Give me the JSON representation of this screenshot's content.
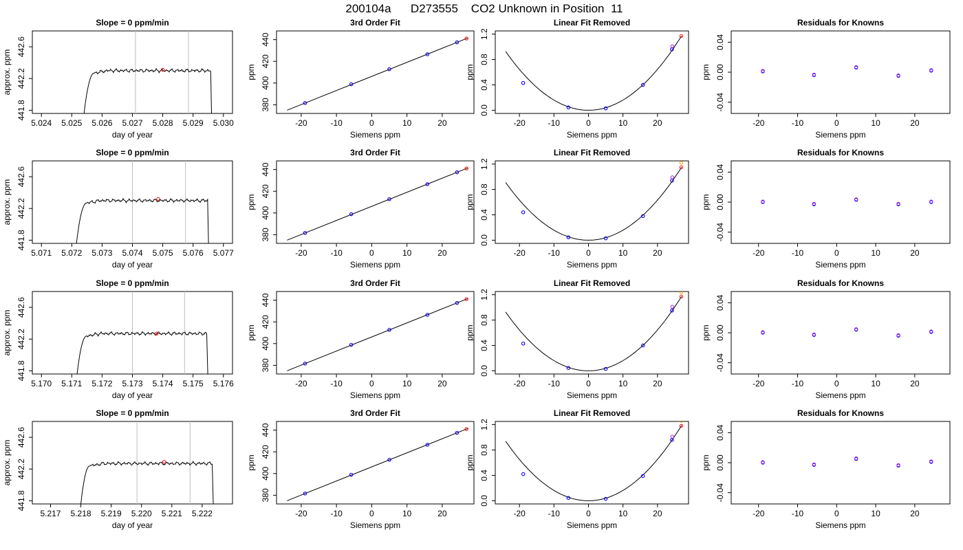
{
  "figure_title": "200104a      D273555    CO2 Unknown in Position  11",
  "colors": {
    "trace": "#000000",
    "gridline": "#bebebe",
    "unknown": "#ff0000",
    "known_blue": "#0000ff",
    "known_purple": "#a020f0",
    "extrapolated": "#ffa500"
  },
  "labels": {
    "slope_title": "Slope =  0  ppm/min",
    "fit_title": "3rd Order Fit",
    "lin_title": "Linear Fit Removed",
    "res_title": "Residuals for Knowns",
    "day_xlabel": "day of year",
    "day_ylabel": "approx. ppm",
    "siemens_xlabel": "Siemens ppm",
    "ppm_ylabel": "ppm"
  },
  "chart_data": [
    {
      "row": 1,
      "panels": [
        {
          "type": "line",
          "title": "Slope =  0  ppm/min",
          "xlabel": "day of year",
          "ylabel": "approx. ppm",
          "xlim": [
            5.0237,
            5.0303
          ],
          "ylim": [
            441.76,
            442.8
          ],
          "xticks": [
            "5.024",
            "5.025",
            "5.026",
            "5.027",
            "5.028",
            "5.029",
            "5.030"
          ],
          "yticks": [
            "441.8",
            "442.2",
            "442.6"
          ],
          "trace": {
            "t_rise_start": 5.02535,
            "t_rise_end": 5.02575,
            "t_fall_start": 5.02958,
            "t_fall_end": 5.02962,
            "plateau": 442.3
          },
          "vlines": [
            5.0271,
            5.02885
          ],
          "unknown_point": {
            "x": 5.028,
            "y": 442.31
          }
        },
        {
          "type": "scatter",
          "title": "3rd Order Fit",
          "xlabel": "Siemens ppm",
          "ylabel": "ppm",
          "xlim": [
            -27,
            29
          ],
          "ylim": [
            372,
            448
          ],
          "xticks": [
            "-20",
            "-10",
            "0",
            "10",
            "20"
          ],
          "yticks": [
            "380",
            "400",
            "420",
            "440"
          ],
          "knowns": [
            {
              "x": -18.9,
              "y": 381.6
            },
            {
              "x": -5.8,
              "y": 398.9
            },
            {
              "x": 5.0,
              "y": 412.7
            },
            {
              "x": 15.8,
              "y": 426.5
            },
            {
              "x": 24.2,
              "y": 437.5
            }
          ],
          "unknown": {
            "x": 26.9,
            "y": 441.0
          }
        },
        {
          "type": "scatter",
          "title": "Linear Fit Removed",
          "xlabel": "Siemens ppm",
          "ylabel": "ppm",
          "xlim": [
            -27,
            29
          ],
          "ylim": [
            -0.05,
            1.25
          ],
          "xticks": [
            "-20",
            "-10",
            "0",
            "10",
            "20"
          ],
          "yticks": [
            "0.0",
            "0.4",
            "0.8",
            "1.2"
          ],
          "curve": {
            "a": 0.00161,
            "range": [
              -24,
              27
            ]
          },
          "knowns": [
            {
              "x": -18.9,
              "y": 0.43
            },
            {
              "x": -5.8,
              "y": 0.045
            },
            {
              "x": 5.0,
              "y": 0.03
            },
            {
              "x": 15.8,
              "y": 0.4
            },
            {
              "x": 24.2,
              "y": 0.96
            }
          ],
          "extra_purple": [
            {
              "x": 24.3,
              "y": 1.01
            }
          ],
          "unknown": {
            "x": 26.9,
            "y": 1.17
          },
          "extrapolated": {
            "x": 26.9,
            "y": 1.28
          }
        },
        {
          "type": "scatter",
          "title": "Residuals for Knowns",
          "xlabel": "Siemens ppm",
          "ylabel": "ppm",
          "xlim": [
            -27,
            29
          ],
          "ylim": [
            -0.055,
            0.055
          ],
          "xticks": [
            "-20",
            "-10",
            "0",
            "10",
            "20"
          ],
          "yticks": [
            "-0.04",
            "0.00",
            "0.04"
          ],
          "knowns": [
            {
              "x": -18.9,
              "y": 0.001
            },
            {
              "x": -5.8,
              "y": -0.004
            },
            {
              "x": 5.0,
              "y": 0.006
            },
            {
              "x": 15.8,
              "y": -0.005
            },
            {
              "x": 24.2,
              "y": 0.002
            }
          ]
        }
      ]
    },
    {
      "row": 2,
      "panels": [
        {
          "type": "line",
          "title": "Slope =  0  ppm/min",
          "xlabel": "day of year",
          "ylabel": "approx. ppm",
          "xlim": [
            5.0707,
            5.0773
          ],
          "ylim": [
            441.76,
            442.8
          ],
          "xticks": [
            "5.071",
            "5.072",
            "5.073",
            "5.074",
            "5.075",
            "5.076",
            "5.077"
          ],
          "yticks": [
            "441.8",
            "442.2",
            "442.6"
          ],
          "trace": {
            "t_rise_start": 5.0721,
            "t_rise_end": 5.0725,
            "t_fall_start": 5.07648,
            "t_fall_end": 5.07652,
            "plateau": 442.3
          },
          "vlines": [
            5.074,
            5.07575
          ],
          "unknown_point": {
            "x": 5.07485,
            "y": 442.32
          }
        },
        {
          "type": "scatter",
          "title": "3rd Order Fit",
          "xlabel": "Siemens ppm",
          "ylabel": "ppm",
          "xlim": [
            -27,
            29
          ],
          "ylim": [
            372,
            448
          ],
          "xticks": [
            "-20",
            "-10",
            "0",
            "10",
            "20"
          ],
          "yticks": [
            "380",
            "400",
            "420",
            "440"
          ],
          "knowns": [
            {
              "x": -18.9,
              "y": 381.6
            },
            {
              "x": -5.8,
              "y": 398.9
            },
            {
              "x": 5.0,
              "y": 412.7
            },
            {
              "x": 15.8,
              "y": 426.5
            },
            {
              "x": 24.2,
              "y": 437.5
            }
          ],
          "unknown": {
            "x": 26.9,
            "y": 441.0
          }
        },
        {
          "type": "scatter",
          "title": "Linear Fit Removed",
          "xlabel": "Siemens ppm",
          "ylabel": "ppm",
          "xlim": [
            -27,
            29
          ],
          "ylim": [
            -0.05,
            1.25
          ],
          "xticks": [
            "-20",
            "-10",
            "0",
            "10",
            "20"
          ],
          "yticks": [
            "0.0",
            "0.4",
            "0.8",
            "1.2"
          ],
          "curve": {
            "a": 0.00158,
            "range": [
              -24,
              27
            ]
          },
          "knowns": [
            {
              "x": -18.9,
              "y": 0.44
            },
            {
              "x": -5.8,
              "y": 0.045
            },
            {
              "x": 5.0,
              "y": 0.03
            },
            {
              "x": 15.8,
              "y": 0.38
            },
            {
              "x": 24.2,
              "y": 0.94
            }
          ],
          "extra_purple": [
            {
              "x": 24.3,
              "y": 0.99
            }
          ],
          "unknown": {
            "x": 26.9,
            "y": 1.15
          },
          "extrapolated": {
            "x": 26.9,
            "y": 1.22
          }
        },
        {
          "type": "scatter",
          "title": "Residuals for Knowns",
          "xlabel": "Siemens ppm",
          "ylabel": "ppm",
          "xlim": [
            -27,
            29
          ],
          "ylim": [
            -0.055,
            0.055
          ],
          "xticks": [
            "-20",
            "-10",
            "0",
            "10",
            "20"
          ],
          "yticks": [
            "-0.04",
            "0.00",
            "0.04"
          ],
          "knowns": [
            {
              "x": -18.9,
              "y": 0.0
            },
            {
              "x": -5.8,
              "y": -0.003
            },
            {
              "x": 5.0,
              "y": 0.003
            },
            {
              "x": 15.8,
              "y": -0.003
            },
            {
              "x": 24.2,
              "y": 0.0
            }
          ]
        }
      ]
    },
    {
      "row": 3,
      "panels": [
        {
          "type": "line",
          "title": "Slope =  0  ppm/min",
          "xlabel": "day of year",
          "ylabel": "approx. ppm",
          "xlim": [
            5.1697,
            5.1763
          ],
          "ylim": [
            441.76,
            442.8
          ],
          "xticks": [
            "5.170",
            "5.171",
            "5.172",
            "5.173",
            "5.174",
            "5.175",
            "5.176"
          ],
          "yticks": [
            "441.8",
            "442.2",
            "442.6"
          ],
          "trace": {
            "t_rise_start": 5.17112,
            "t_rise_end": 5.1715,
            "t_fall_start": 5.17545,
            "t_fall_end": 5.1755,
            "plateau": 442.27
          },
          "vlines": [
            5.173,
            5.17472
          ],
          "unknown_point": {
            "x": 5.1738,
            "y": 442.27
          }
        },
        {
          "type": "scatter",
          "title": "3rd Order Fit",
          "xlabel": "Siemens ppm",
          "ylabel": "ppm",
          "xlim": [
            -27,
            29
          ],
          "ylim": [
            372,
            448
          ],
          "xticks": [
            "-20",
            "-10",
            "0",
            "10",
            "20"
          ],
          "yticks": [
            "380",
            "400",
            "420",
            "440"
          ],
          "knowns": [
            {
              "x": -18.9,
              "y": 381.6
            },
            {
              "x": -5.8,
              "y": 398.9
            },
            {
              "x": 5.0,
              "y": 412.7
            },
            {
              "x": 15.8,
              "y": 426.5
            },
            {
              "x": 24.2,
              "y": 437.5
            }
          ],
          "unknown": {
            "x": 26.9,
            "y": 441.0
          }
        },
        {
          "type": "scatter",
          "title": "Linear Fit Removed",
          "xlabel": "Siemens ppm",
          "ylabel": "ppm",
          "xlim": [
            -27,
            29
          ],
          "ylim": [
            -0.05,
            1.25
          ],
          "xticks": [
            "-20",
            "-10",
            "0",
            "10",
            "20"
          ],
          "yticks": [
            "0.0",
            "0.4",
            "0.8",
            "1.2"
          ],
          "curve": {
            "a": 0.00161,
            "range": [
              -24,
              27
            ]
          },
          "knowns": [
            {
              "x": -18.9,
              "y": 0.43
            },
            {
              "x": -5.8,
              "y": 0.045
            },
            {
              "x": 5.0,
              "y": 0.03
            },
            {
              "x": 15.8,
              "y": 0.4
            },
            {
              "x": 24.2,
              "y": 0.95
            }
          ],
          "extra_purple": [
            {
              "x": 24.3,
              "y": 1.01
            }
          ],
          "unknown": {
            "x": 26.9,
            "y": 1.17
          },
          "extrapolated": {
            "x": 26.9,
            "y": 1.24
          }
        },
        {
          "type": "scatter",
          "title": "Residuals for Knowns",
          "xlabel": "Siemens ppm",
          "ylabel": "ppm",
          "xlim": [
            -27,
            29
          ],
          "ylim": [
            -0.055,
            0.055
          ],
          "xticks": [
            "-20",
            "-10",
            "0",
            "10",
            "20"
          ],
          "yticks": [
            "-0.04",
            "0.00",
            "0.04"
          ],
          "knowns": [
            {
              "x": -18.9,
              "y": 0.0
            },
            {
              "x": -5.8,
              "y": -0.003
            },
            {
              "x": 5.0,
              "y": 0.004
            },
            {
              "x": 15.8,
              "y": -0.004
            },
            {
              "x": 24.2,
              "y": 0.001
            }
          ]
        }
      ]
    },
    {
      "row": 4,
      "panels": [
        {
          "type": "line",
          "title": "Slope =  0  ppm/min",
          "xlabel": "day of year",
          "ylabel": "approx. ppm",
          "xlim": [
            5.2164,
            5.223
          ],
          "ylim": [
            441.76,
            442.8
          ],
          "xticks": [
            "5.217",
            "5.218",
            "5.219",
            "5.220",
            "5.221",
            "5.222"
          ],
          "yticks": [
            "441.8",
            "442.2",
            "442.6"
          ],
          "trace": {
            "t_rise_start": 5.21795,
            "t_rise_end": 5.2183,
            "t_fall_start": 5.22233,
            "t_fall_end": 5.22238,
            "plateau": 442.27
          },
          "vlines": [
            5.21985,
            5.2216
          ],
          "unknown_point": {
            "x": 5.22075,
            "y": 442.29
          }
        },
        {
          "type": "scatter",
          "title": "3rd Order Fit",
          "xlabel": "Siemens ppm",
          "ylabel": "ppm",
          "xlim": [
            -27,
            29
          ],
          "ylim": [
            372,
            448
          ],
          "xticks": [
            "-20",
            "-10",
            "0",
            "10",
            "20"
          ],
          "yticks": [
            "380",
            "400",
            "420",
            "440"
          ],
          "knowns": [
            {
              "x": -18.9,
              "y": 381.6
            },
            {
              "x": -5.8,
              "y": 398.9
            },
            {
              "x": 5.0,
              "y": 412.7
            },
            {
              "x": 15.8,
              "y": 426.5
            },
            {
              "x": 24.2,
              "y": 437.5
            }
          ],
          "unknown": {
            "x": 26.9,
            "y": 441.0
          }
        },
        {
          "type": "scatter",
          "title": "Linear Fit Removed",
          "xlabel": "Siemens ppm",
          "ylabel": "ppm",
          "xlim": [
            -27,
            29
          ],
          "ylim": [
            -0.05,
            1.25
          ],
          "xticks": [
            "-20",
            "-10",
            "0",
            "10",
            "20"
          ],
          "yticks": [
            "0.0",
            "0.4",
            "0.8",
            "1.2"
          ],
          "curve": {
            "a": 0.00163,
            "range": [
              -24,
              27
            ]
          },
          "knowns": [
            {
              "x": -18.9,
              "y": 0.42
            },
            {
              "x": -5.8,
              "y": 0.045
            },
            {
              "x": 5.0,
              "y": 0.03
            },
            {
              "x": 15.8,
              "y": 0.39
            },
            {
              "x": 24.2,
              "y": 0.96
            }
          ],
          "extra_purple": [
            {
              "x": 24.3,
              "y": 1.01
            }
          ],
          "unknown": {
            "x": 26.9,
            "y": 1.18
          },
          "extrapolated": {
            "x": 26.9,
            "y": 1.26
          }
        },
        {
          "type": "scatter",
          "title": "Residuals for Knowns",
          "xlabel": "Siemens ppm",
          "ylabel": "ppm",
          "xlim": [
            -27,
            29
          ],
          "ylim": [
            -0.055,
            0.055
          ],
          "xticks": [
            "-20",
            "-10",
            "0",
            "10",
            "20"
          ],
          "yticks": [
            "-0.04",
            "0.00",
            "0.04"
          ],
          "knowns": [
            {
              "x": -18.9,
              "y": 0.0
            },
            {
              "x": -5.8,
              "y": -0.003
            },
            {
              "x": 5.0,
              "y": 0.005
            },
            {
              "x": 15.8,
              "y": -0.004
            },
            {
              "x": 24.2,
              "y": 0.001
            }
          ]
        }
      ]
    }
  ]
}
